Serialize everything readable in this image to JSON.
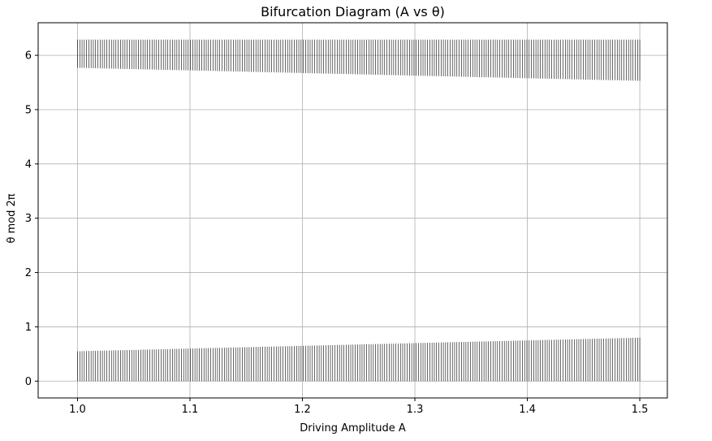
{
  "chart_data": {
    "type": "scatter",
    "title": "Bifurcation Diagram (A vs θ)",
    "xlabel": "Driving Amplitude A",
    "ylabel": "θ mod 2π",
    "xlim": [
      0.965,
      1.5245
    ],
    "ylim": [
      -0.31,
      6.6
    ],
    "xticks": [
      1.0,
      1.1,
      1.2,
      1.3,
      1.4,
      1.5
    ],
    "xtick_labels": [
      "1.0",
      "1.1",
      "1.2",
      "1.3",
      "1.4",
      "1.5"
    ],
    "yticks": [
      0,
      1,
      2,
      3,
      4,
      5,
      6
    ],
    "ytick_labels": [
      "0",
      "1",
      "2",
      "3",
      "4",
      "5",
      "6"
    ],
    "grid": true,
    "marker_color": "#000000",
    "a_range": [
      1.0,
      1.5
    ],
    "a_samples": 250,
    "bands": [
      {
        "name": "lower",
        "lower": [
          0.0,
          0.0
        ],
        "upper": [
          0.55,
          0.8
        ]
      },
      {
        "name": "upper",
        "lower": [
          5.77,
          5.53
        ],
        "upper": [
          6.29,
          6.29
        ]
      }
    ]
  }
}
